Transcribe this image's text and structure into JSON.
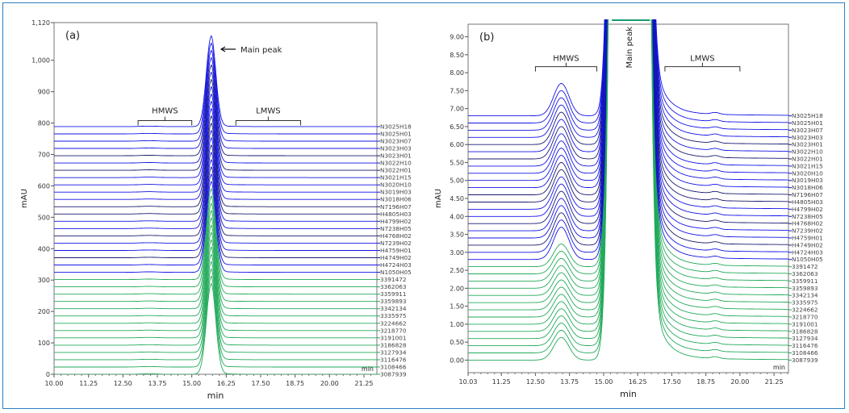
{
  "chart_data": [
    {
      "type": "line",
      "panel_label": "(a)",
      "xlabel": "min",
      "ylabel": "mAU",
      "x_unit_label": "min",
      "xlim": [
        10.0,
        21.72
      ],
      "ylim": [
        0,
        1120
      ],
      "x_ticks": [
        "10.00",
        "11.25",
        "12.50",
        "13.75",
        "15.00",
        "16.25",
        "17.50",
        "18.75",
        "20.00",
        "21.25"
      ],
      "y_ticks": [
        "0",
        "100",
        "200",
        "300",
        "400",
        "500",
        "600",
        "700",
        "800",
        "900",
        "1,000",
        "1,120"
      ],
      "y_tick_values": [
        0,
        100,
        200,
        300,
        400,
        500,
        600,
        700,
        800,
        900,
        1000,
        1120
      ],
      "trace_offset_step": 23.2,
      "main_peak": {
        "retention_time": 15.7,
        "height": 285
      },
      "annotations": [
        {
          "text": "Main peak",
          "type": "arrow",
          "target_x": 15.9
        },
        {
          "text": "HMWS",
          "type": "bracket",
          "range": [
            13.05,
            15.0
          ]
        },
        {
          "text": "LMWS",
          "type": "bracket",
          "range": [
            16.6,
            18.95
          ]
        }
      ],
      "grid": false
    },
    {
      "type": "line",
      "panel_label": "(b)",
      "xlabel": "min",
      "ylabel": "mAU",
      "x_unit_label": "min",
      "xlim": [
        10.03,
        21.78
      ],
      "ylim": [
        -0.35,
        9.35
      ],
      "x_ticks": [
        "10.03",
        "11.25",
        "12.50",
        "13.75",
        "15.00",
        "16.25",
        "17.50",
        "18.75",
        "20.00",
        "21.25"
      ],
      "y_ticks": [
        "0.00",
        "0.50",
        "1.00",
        "1.50",
        "2.00",
        "2.50",
        "3.00",
        "3.50",
        "4.00",
        "4.50",
        "5.00",
        "5.50",
        "6.00",
        "6.50",
        "7.00",
        "7.50",
        "8.00",
        "8.50",
        "9.00"
      ],
      "y_tick_values": [
        0,
        0.5,
        1,
        1.5,
        2,
        2.5,
        3,
        3.5,
        4,
        4.5,
        5,
        5.5,
        6,
        6.5,
        7,
        7.5,
        8,
        8.5,
        9
      ],
      "trace_offset_step": 0.2,
      "hmws_peak": {
        "retention_time": 13.45,
        "height": 0.9
      },
      "annotations": [
        {
          "text": "Main peak",
          "type": "vertical-label"
        },
        {
          "text": "HMWS",
          "type": "bracket",
          "range": [
            12.5,
            14.75
          ]
        },
        {
          "text": "LMWS",
          "type": "bracket",
          "range": [
            17.25,
            20.0
          ]
        }
      ],
      "grid": false
    }
  ],
  "series_names": [
    "N3025H18",
    "N3025H01",
    "N3023H07",
    "N3023H03",
    "N3023H01",
    "N3022H10",
    "N3022H01",
    "N3021H15",
    "N3020H10",
    "N3019H03",
    "N3018H06",
    "N7196H07",
    "H4805H03",
    "H4799H02",
    "N7238H05",
    "H4768H02",
    "N7239H02",
    "H4759H01",
    "H4749H02",
    "H4724H03",
    "N1050H05",
    "3391472",
    "3362063",
    "3359911",
    "3359893",
    "3342134",
    "3335975",
    "3224662",
    "3218770",
    "3191001",
    "3186828",
    "3127934",
    "3116476",
    "3108466",
    "3087939"
  ],
  "colors": {
    "group_N_H": "#1414e6",
    "group_numeric": "#22aa5a",
    "frame": "#2a7fc0"
  }
}
